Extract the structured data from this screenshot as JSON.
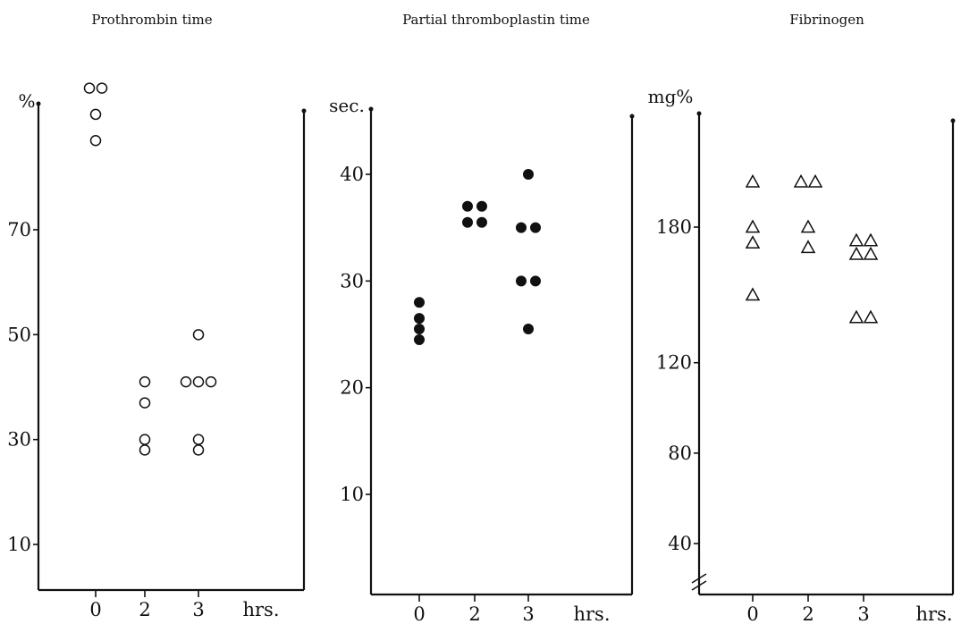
{
  "chart_data": [
    {
      "type": "scatter",
      "title": "Prothrombin time",
      "ylabel": "%",
      "xlabel": "hrs.",
      "categories": [
        "0",
        "2",
        "3"
      ],
      "yticks": [
        10,
        30,
        50,
        70
      ],
      "ylim": [
        0,
        98
      ],
      "marker": "open-circle",
      "points": [
        {
          "x": "0",
          "y": 97
        },
        {
          "x": "0",
          "y": 97
        },
        {
          "x": "0",
          "y": 92
        },
        {
          "x": "0",
          "y": 87
        },
        {
          "x": "2",
          "y": 41
        },
        {
          "x": "2",
          "y": 37
        },
        {
          "x": "2",
          "y": 30
        },
        {
          "x": "2",
          "y": 28
        },
        {
          "x": "3",
          "y": 50
        },
        {
          "x": "3",
          "y": 41
        },
        {
          "x": "3",
          "y": 41
        },
        {
          "x": "3",
          "y": 41
        },
        {
          "x": "3",
          "y": 30
        },
        {
          "x": "3",
          "y": 28
        }
      ]
    },
    {
      "type": "scatter",
      "title": "Partial thromboplastin time",
      "ylabel": "sec.",
      "xlabel": "hrs.",
      "categories": [
        "0",
        "2",
        "3"
      ],
      "yticks": [
        10,
        20,
        30,
        40
      ],
      "ylim": [
        0,
        46
      ],
      "marker": "filled-circle",
      "points": [
        {
          "x": "0",
          "y": 28
        },
        {
          "x": "0",
          "y": 26.5
        },
        {
          "x": "0",
          "y": 25.5
        },
        {
          "x": "0",
          "y": 24.5
        },
        {
          "x": "2",
          "y": 37
        },
        {
          "x": "2",
          "y": 37
        },
        {
          "x": "2",
          "y": 35.5
        },
        {
          "x": "2",
          "y": 35.5
        },
        {
          "x": "3",
          "y": 40
        },
        {
          "x": "3",
          "y": 35
        },
        {
          "x": "3",
          "y": 35
        },
        {
          "x": "3",
          "y": 30
        },
        {
          "x": "3",
          "y": 30
        },
        {
          "x": "3",
          "y": 25.5
        }
      ]
    },
    {
      "type": "scatter",
      "title": "Fibrinogen",
      "ylabel": "mg%",
      "xlabel": "hrs.",
      "categories": [
        "0",
        "2",
        "3"
      ],
      "yticks": [
        40,
        80,
        120,
        180
      ],
      "ylim": [
        30,
        220
      ],
      "axis_break": true,
      "marker": "open-triangle",
      "points": [
        {
          "x": "0",
          "y": 200
        },
        {
          "x": "0",
          "y": 180
        },
        {
          "x": "0",
          "y": 173
        },
        {
          "x": "0",
          "y": 150
        },
        {
          "x": "2",
          "y": 200
        },
        {
          "x": "2",
          "y": 200
        },
        {
          "x": "2",
          "y": 180
        },
        {
          "x": "2",
          "y": 171
        },
        {
          "x": "3",
          "y": 174
        },
        {
          "x": "3",
          "y": 174
        },
        {
          "x": "3",
          "y": 168
        },
        {
          "x": "3",
          "y": 168
        },
        {
          "x": "3",
          "y": 140
        },
        {
          "x": "3",
          "y": 140
        }
      ]
    }
  ]
}
